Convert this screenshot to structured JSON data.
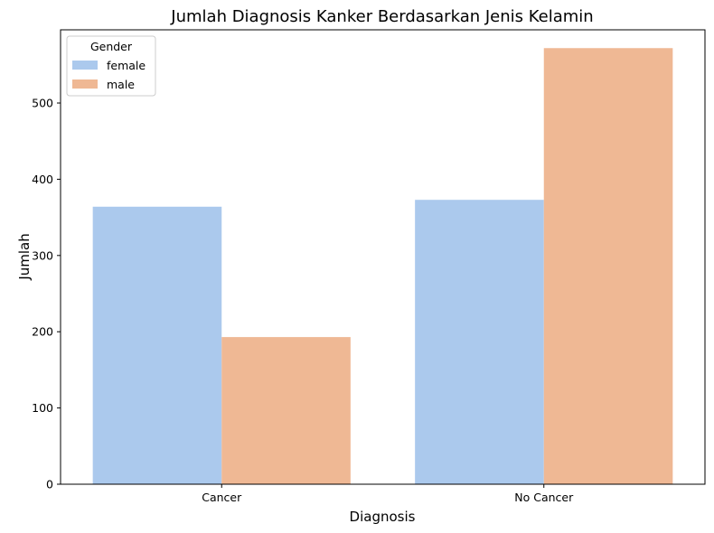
{
  "chart_data": {
    "type": "bar",
    "title": "Jumlah Diagnosis Kanker Berdasarkan Jenis Kelamin",
    "xlabel": "Diagnosis",
    "ylabel": "Jumlah",
    "categories": [
      "Cancer",
      "No Cancer"
    ],
    "series": [
      {
        "name": "female",
        "color": "#abc9ed",
        "values": [
          364,
          373
        ]
      },
      {
        "name": "male",
        "color": "#efb894",
        "values": [
          193,
          572
        ]
      }
    ],
    "ylim": [
      0,
      596
    ],
    "yticks": [
      0,
      100,
      200,
      300,
      400,
      500
    ],
    "legend": {
      "title": "Gender",
      "position": "top-left"
    },
    "grid": false
  }
}
